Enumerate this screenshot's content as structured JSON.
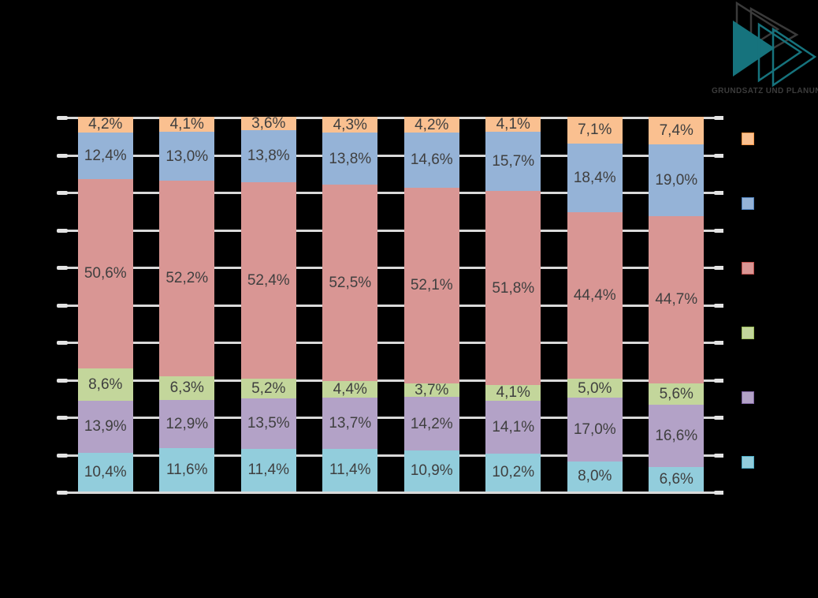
{
  "logo": {
    "caption": "GRUNDSATZ UND PLANUNG",
    "teal_color": "#16737D",
    "outline_color": "#3A3A3A"
  },
  "colors": {
    "background": "#000000",
    "gridline": "#D9D9D9",
    "label_text": "#3F3F3F"
  },
  "chart_data": {
    "type": "bar",
    "stacked": true,
    "unit": "percent",
    "ylim": [
      0,
      100
    ],
    "gridlines": {
      "show": true,
      "interval_percent": 10
    },
    "axis_tick_labels_visible": false,
    "categories": [
      "",
      "",
      "",
      "",
      "",
      "",
      "",
      ""
    ],
    "legend": {
      "position": "right",
      "text_visible": false
    },
    "series": [
      {
        "name": "orange-segment",
        "stack_position": "top",
        "fill": "#FAC090",
        "border": "#F79646",
        "values": [
          4.2,
          4.1,
          3.6,
          4.3,
          4.2,
          4.1,
          7.1,
          7.4
        ],
        "labels": [
          "4,2%",
          "4,1%",
          "3,6%",
          "4,3%",
          "4,2%",
          "4,1%",
          "7,1%",
          "7,4%"
        ]
      },
      {
        "name": "blue-segment",
        "stack_position": "2",
        "fill": "#95B3D7",
        "border": "#4F81BD",
        "values": [
          12.4,
          13.0,
          13.8,
          13.8,
          14.6,
          15.7,
          18.4,
          19.0
        ],
        "labels": [
          "12,4%",
          "13,0%",
          "13,8%",
          "13,8%",
          "14,6%",
          "15,7%",
          "18,4%",
          "19,0%"
        ]
      },
      {
        "name": "red-segment",
        "stack_position": "3",
        "fill": "#D99694",
        "border": "#C0504D",
        "values": [
          50.6,
          52.2,
          52.4,
          52.5,
          52.1,
          51.8,
          44.4,
          44.7
        ],
        "labels": [
          "50,6%",
          "52,2%",
          "52,4%",
          "52,5%",
          "52,1%",
          "51,8%",
          "44,4%",
          "44,7%"
        ]
      },
      {
        "name": "green-segment",
        "stack_position": "4",
        "fill": "#C3D69B",
        "border": "#9BBB59",
        "values": [
          8.6,
          6.3,
          5.2,
          4.4,
          3.7,
          4.1,
          5.0,
          5.6
        ],
        "labels": [
          "8,6%",
          "6,3%",
          "5,2%",
          "4,4%",
          "3,7%",
          "4,1%",
          "5,0%",
          "5,6%"
        ]
      },
      {
        "name": "purple-segment",
        "stack_position": "5",
        "fill": "#B3A2C7",
        "border": "#8064A2",
        "values": [
          13.9,
          12.9,
          13.5,
          13.7,
          14.2,
          14.1,
          17.0,
          16.6
        ],
        "labels": [
          "13,9%",
          "12,9%",
          "13,5%",
          "13,7%",
          "14,2%",
          "14,1%",
          "17,0%",
          "16,6%"
        ]
      },
      {
        "name": "teal-segment",
        "stack_position": "bottom",
        "fill": "#92CDDC",
        "border": "#4BACC6",
        "values": [
          10.4,
          11.6,
          11.4,
          11.4,
          10.9,
          10.2,
          8.0,
          6.6
        ],
        "labels": [
          "10,4%",
          "11,6%",
          "11,4%",
          "11,4%",
          "10,9%",
          "10,2%",
          "8,0%",
          "6,6%"
        ]
      }
    ]
  }
}
